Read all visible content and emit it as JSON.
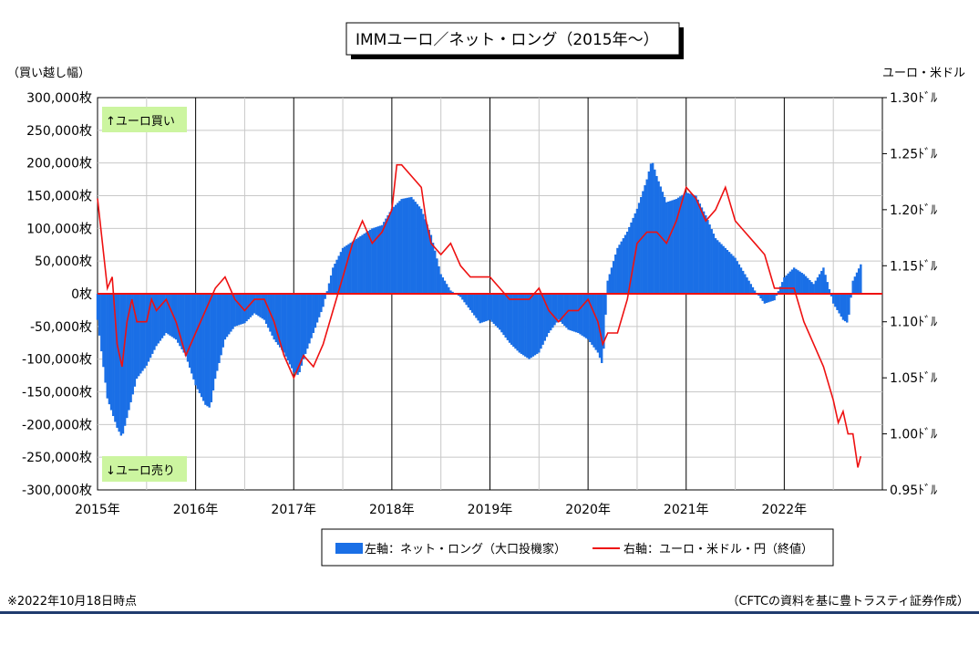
{
  "title": "IMMユーロ／ネット・ロング（2015年～）",
  "left_axis_unit": "（買い越し幅）",
  "right_axis_unit": "ユーロ・米ドル",
  "buy_label": "↑ユーロ買い",
  "sell_label": "↓ユーロ売り",
  "footnote": "※2022年10月18日時点",
  "source": "（CFTCの資料を基に豊トラスティ証券作成）",
  "legend": {
    "bars": "左軸：ネット・ロング（大口投機家）",
    "line": "右軸：ユーロ・米ドル・円（終値）"
  },
  "colors": {
    "bars": "#1a6fe6",
    "line": "#ee1111",
    "note_bg": "#ccf5a0",
    "bottom_rule": "#1f3b6e"
  },
  "chart_data": {
    "type": "bar",
    "x_ticks": [
      "2015年",
      "2016年",
      "2017年",
      "2018年",
      "2019年",
      "2020年",
      "2021年",
      "2022年"
    ],
    "y_left_ticks": [
      "300,000枚",
      "250,000枚",
      "200,000枚",
      "150,000枚",
      "100,000枚",
      "50,000枚",
      "0枚",
      "-50,000枚",
      "-100,000枚",
      "-150,000枚",
      "-200,000枚",
      "-250,000枚",
      "-300,000枚"
    ],
    "y_right_ticks": [
      "1.30ﾄﾞﾙ",
      "1.25ﾄﾞﾙ",
      "1.20ﾄﾞﾙ",
      "1.15ﾄﾞﾙ",
      "1.10ﾄﾞﾙ",
      "1.05ﾄﾞﾙ",
      "1.00ﾄﾞﾙ",
      "0.95ﾄﾞﾙ"
    ],
    "y_left_range": [
      -300000,
      300000
    ],
    "y_right_range": [
      0.95,
      1.3
    ],
    "x_range": [
      2015.0,
      2023.0
    ],
    "grid": true,
    "legend_position": "bottom",
    "series": [
      {
        "name": "左軸：ネット・ロング（大口投機家）",
        "kind": "bar",
        "axis": "left",
        "points": [
          [
            2015.0,
            -40000
          ],
          [
            2015.1,
            -160000
          ],
          [
            2015.2,
            -205000
          ],
          [
            2015.25,
            -220000
          ],
          [
            2015.3,
            -190000
          ],
          [
            2015.4,
            -130000
          ],
          [
            2015.5,
            -110000
          ],
          [
            2015.6,
            -80000
          ],
          [
            2015.7,
            -60000
          ],
          [
            2015.8,
            -70000
          ],
          [
            2015.9,
            -95000
          ],
          [
            2016.0,
            -140000
          ],
          [
            2016.1,
            -170000
          ],
          [
            2016.15,
            -175000
          ],
          [
            2016.2,
            -130000
          ],
          [
            2016.3,
            -70000
          ],
          [
            2016.4,
            -50000
          ],
          [
            2016.5,
            -45000
          ],
          [
            2016.6,
            -30000
          ],
          [
            2016.7,
            -40000
          ],
          [
            2016.8,
            -70000
          ],
          [
            2016.9,
            -90000
          ],
          [
            2017.0,
            -120000
          ],
          [
            2017.05,
            -125000
          ],
          [
            2017.1,
            -100000
          ],
          [
            2017.2,
            -60000
          ],
          [
            2017.3,
            -20000
          ],
          [
            2017.4,
            40000
          ],
          [
            2017.5,
            70000
          ],
          [
            2017.6,
            80000
          ],
          [
            2017.7,
            90000
          ],
          [
            2017.8,
            100000
          ],
          [
            2017.9,
            105000
          ],
          [
            2018.0,
            130000
          ],
          [
            2018.1,
            145000
          ],
          [
            2018.2,
            148000
          ],
          [
            2018.3,
            130000
          ],
          [
            2018.4,
            90000
          ],
          [
            2018.5,
            30000
          ],
          [
            2018.6,
            5000
          ],
          [
            2018.7,
            -5000
          ],
          [
            2018.8,
            -25000
          ],
          [
            2018.9,
            -45000
          ],
          [
            2019.0,
            -40000
          ],
          [
            2019.1,
            -55000
          ],
          [
            2019.2,
            -75000
          ],
          [
            2019.3,
            -90000
          ],
          [
            2019.4,
            -100000
          ],
          [
            2019.5,
            -90000
          ],
          [
            2019.6,
            -60000
          ],
          [
            2019.7,
            -40000
          ],
          [
            2019.8,
            -55000
          ],
          [
            2019.9,
            -60000
          ],
          [
            2020.0,
            -70000
          ],
          [
            2020.1,
            -90000
          ],
          [
            2020.15,
            -110000
          ],
          [
            2020.2,
            20000
          ],
          [
            2020.3,
            70000
          ],
          [
            2020.4,
            95000
          ],
          [
            2020.5,
            130000
          ],
          [
            2020.6,
            175000
          ],
          [
            2020.65,
            205000
          ],
          [
            2020.7,
            180000
          ],
          [
            2020.8,
            140000
          ],
          [
            2020.9,
            145000
          ],
          [
            2021.0,
            155000
          ],
          [
            2021.1,
            150000
          ],
          [
            2021.2,
            120000
          ],
          [
            2021.3,
            85000
          ],
          [
            2021.4,
            70000
          ],
          [
            2021.5,
            55000
          ],
          [
            2021.6,
            30000
          ],
          [
            2021.7,
            5000
          ],
          [
            2021.8,
            -15000
          ],
          [
            2021.9,
            -10000
          ],
          [
            2022.0,
            25000
          ],
          [
            2022.1,
            40000
          ],
          [
            2022.2,
            30000
          ],
          [
            2022.3,
            15000
          ],
          [
            2022.4,
            40000
          ],
          [
            2022.5,
            -15000
          ],
          [
            2022.6,
            -40000
          ],
          [
            2022.65,
            -45000
          ],
          [
            2022.7,
            20000
          ],
          [
            2022.78,
            45000
          ]
        ]
      },
      {
        "name": "右軸：ユーロ・米ドル・円（終値）",
        "kind": "line",
        "axis": "right",
        "points": [
          [
            2015.0,
            1.21
          ],
          [
            2015.05,
            1.17
          ],
          [
            2015.1,
            1.13
          ],
          [
            2015.15,
            1.14
          ],
          [
            2015.2,
            1.08
          ],
          [
            2015.25,
            1.06
          ],
          [
            2015.3,
            1.1
          ],
          [
            2015.35,
            1.12
          ],
          [
            2015.4,
            1.1
          ],
          [
            2015.5,
            1.1
          ],
          [
            2015.55,
            1.12
          ],
          [
            2015.6,
            1.11
          ],
          [
            2015.7,
            1.12
          ],
          [
            2015.8,
            1.1
          ],
          [
            2015.9,
            1.07
          ],
          [
            2016.0,
            1.09
          ],
          [
            2016.1,
            1.11
          ],
          [
            2016.2,
            1.13
          ],
          [
            2016.3,
            1.14
          ],
          [
            2016.4,
            1.12
          ],
          [
            2016.5,
            1.11
          ],
          [
            2016.6,
            1.12
          ],
          [
            2016.7,
            1.12
          ],
          [
            2016.8,
            1.1
          ],
          [
            2016.9,
            1.07
          ],
          [
            2017.0,
            1.05
          ],
          [
            2017.1,
            1.07
          ],
          [
            2017.2,
            1.06
          ],
          [
            2017.3,
            1.08
          ],
          [
            2017.4,
            1.11
          ],
          [
            2017.5,
            1.14
          ],
          [
            2017.6,
            1.17
          ],
          [
            2017.7,
            1.19
          ],
          [
            2017.8,
            1.17
          ],
          [
            2017.9,
            1.18
          ],
          [
            2018.0,
            1.2
          ],
          [
            2018.05,
            1.24
          ],
          [
            2018.1,
            1.24
          ],
          [
            2018.2,
            1.23
          ],
          [
            2018.3,
            1.22
          ],
          [
            2018.35,
            1.19
          ],
          [
            2018.4,
            1.17
          ],
          [
            2018.5,
            1.16
          ],
          [
            2018.6,
            1.17
          ],
          [
            2018.7,
            1.15
          ],
          [
            2018.8,
            1.14
          ],
          [
            2018.9,
            1.14
          ],
          [
            2019.0,
            1.14
          ],
          [
            2019.1,
            1.13
          ],
          [
            2019.2,
            1.12
          ],
          [
            2019.3,
            1.12
          ],
          [
            2019.4,
            1.12
          ],
          [
            2019.5,
            1.13
          ],
          [
            2019.6,
            1.11
          ],
          [
            2019.7,
            1.1
          ],
          [
            2019.8,
            1.11
          ],
          [
            2019.9,
            1.11
          ],
          [
            2020.0,
            1.12
          ],
          [
            2020.1,
            1.1
          ],
          [
            2020.15,
            1.08
          ],
          [
            2020.2,
            1.09
          ],
          [
            2020.3,
            1.09
          ],
          [
            2020.4,
            1.12
          ],
          [
            2020.5,
            1.17
          ],
          [
            2020.6,
            1.18
          ],
          [
            2020.7,
            1.18
          ],
          [
            2020.8,
            1.17
          ],
          [
            2020.9,
            1.19
          ],
          [
            2021.0,
            1.22
          ],
          [
            2021.1,
            1.21
          ],
          [
            2021.2,
            1.19
          ],
          [
            2021.3,
            1.2
          ],
          [
            2021.4,
            1.22
          ],
          [
            2021.5,
            1.19
          ],
          [
            2021.6,
            1.18
          ],
          [
            2021.7,
            1.17
          ],
          [
            2021.8,
            1.16
          ],
          [
            2021.9,
            1.13
          ],
          [
            2022.0,
            1.13
          ],
          [
            2022.1,
            1.13
          ],
          [
            2022.2,
            1.1
          ],
          [
            2022.3,
            1.08
          ],
          [
            2022.4,
            1.06
          ],
          [
            2022.5,
            1.03
          ],
          [
            2022.55,
            1.01
          ],
          [
            2022.6,
            1.02
          ],
          [
            2022.65,
            1.0
          ],
          [
            2022.7,
            1.0
          ],
          [
            2022.75,
            0.97
          ],
          [
            2022.78,
            0.98
          ]
        ]
      }
    ]
  }
}
